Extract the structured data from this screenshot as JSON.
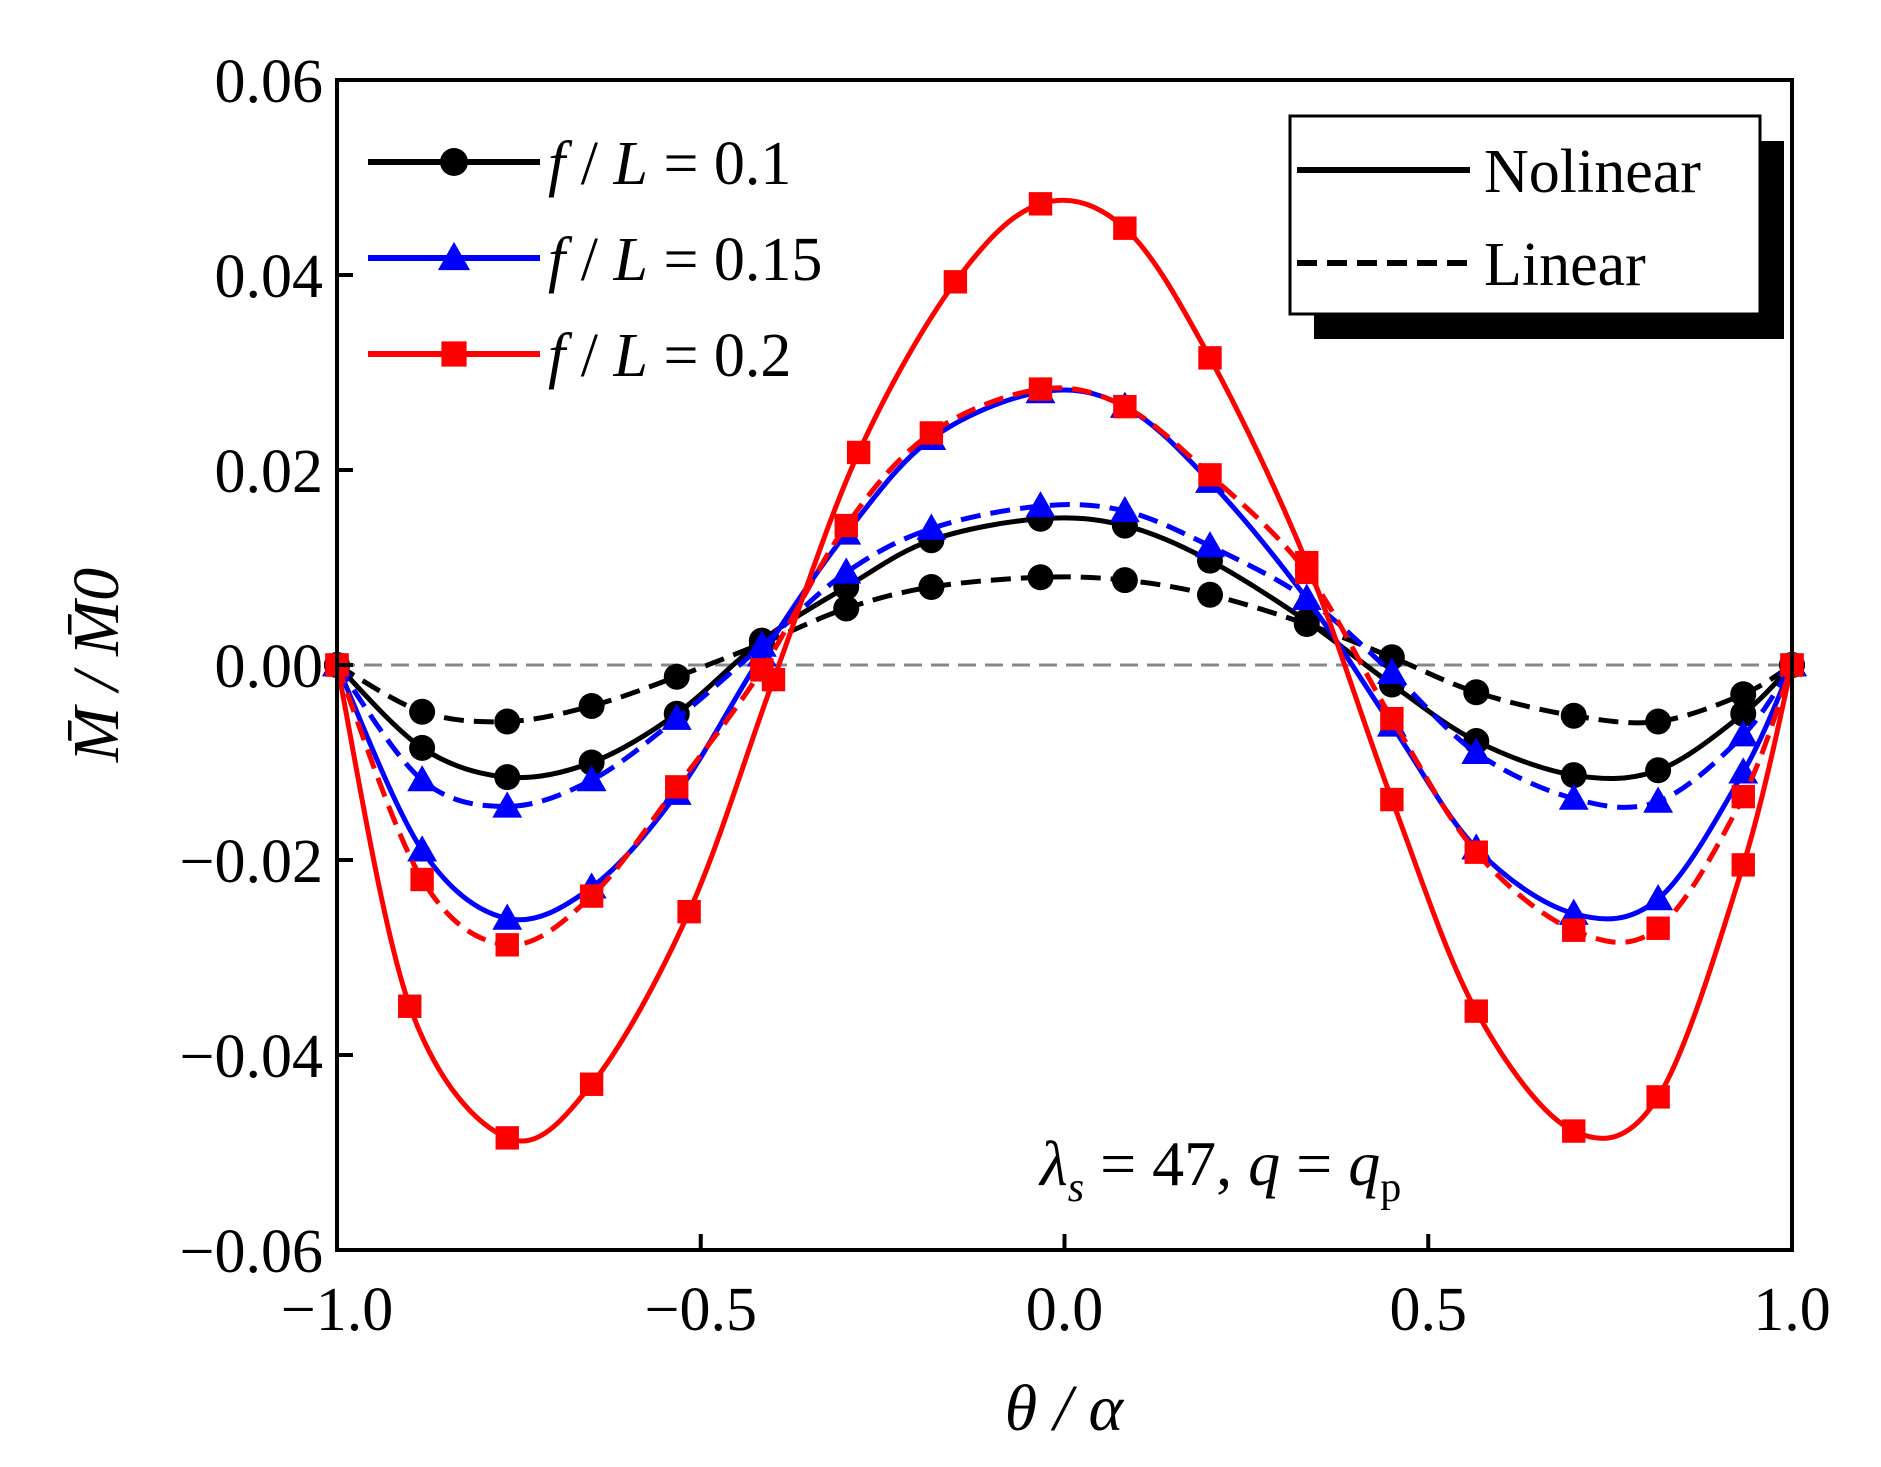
{
  "chart_data": {
    "type": "line",
    "xlabel": "θ / α",
    "ylabel": "M̄ / M̄0",
    "xlim": [
      -1.0,
      1.0
    ],
    "ylim": [
      -0.06,
      0.06
    ],
    "xticks": [
      -1.0,
      -0.5,
      0.0,
      0.5,
      1.0
    ],
    "xtick_labels": [
      "−1.0",
      "−0.5",
      "0.0",
      "0.5",
      "1.0"
    ],
    "yticks": [
      -0.06,
      -0.04,
      -0.02,
      0.0,
      0.02,
      0.04,
      0.06
    ],
    "ytick_labels": [
      "−0.06",
      "−0.04",
      "−0.02",
      "0.00",
      "0.02",
      "0.04",
      "0.06"
    ],
    "zero_line": true,
    "grid": false,
    "legend_series_placement": "top-left",
    "legend_style_placement": "top-right",
    "style_legend": [
      {
        "label": "Nolinear",
        "dash": "solid"
      },
      {
        "label": "Linear",
        "dash": "dashed"
      }
    ],
    "annotation": {
      "lambda": "λ",
      "lambda_sub": "s",
      "middle": " = 47, ",
      "q": "q",
      "eq": " = ",
      "q2": "q",
      "q2_sub": "p"
    },
    "series": [
      {
        "name": "f / L = 0.1",
        "name_parts": {
          "f": "f",
          "sep": " / ",
          "L": "L",
          "val": " = 0.1"
        },
        "color": "#000000",
        "marker": "circle",
        "style": "solid",
        "x": [
          -1.0,
          -0.883,
          -0.766,
          -0.65,
          -0.533,
          -0.416,
          -0.3,
          -0.183,
          -0.033,
          0.083,
          0.2,
          0.333,
          0.45,
          0.566,
          0.7,
          0.816,
          0.933,
          1.0
        ],
        "y": [
          0.0,
          -0.0085,
          -0.0115,
          -0.01,
          -0.005,
          0.0025,
          0.008,
          0.0128,
          0.015,
          0.0143,
          0.0107,
          0.0045,
          -0.002,
          -0.0078,
          -0.0113,
          -0.0108,
          -0.005,
          0.0
        ]
      },
      {
        "name": "f / L = 0.1",
        "color": "#000000",
        "marker": "circle",
        "style": "dashed",
        "x": [
          -1.0,
          -0.883,
          -0.766,
          -0.65,
          -0.533,
          -0.416,
          -0.3,
          -0.183,
          -0.033,
          0.083,
          0.2,
          0.333,
          0.45,
          0.566,
          0.7,
          0.816,
          0.933,
          1.0
        ],
        "y": [
          0.0,
          -0.0048,
          -0.0058,
          -0.0042,
          -0.0012,
          0.0022,
          0.0058,
          0.008,
          0.009,
          0.0087,
          0.0072,
          0.0042,
          0.0008,
          -0.0028,
          -0.0052,
          -0.0058,
          -0.003,
          0.0
        ]
      },
      {
        "name": "f / L = 0.15",
        "name_parts": {
          "f": "f",
          "sep": " / ",
          "L": "L",
          "val": " = 0.15"
        },
        "color": "#0000ff",
        "marker": "triangle",
        "style": "solid",
        "x": [
          -1.0,
          -0.883,
          -0.766,
          -0.65,
          -0.533,
          -0.416,
          -0.3,
          -0.183,
          -0.033,
          0.083,
          0.2,
          0.333,
          0.45,
          0.566,
          0.7,
          0.816,
          0.933,
          1.0
        ],
        "y": [
          0.0,
          -0.019,
          -0.026,
          -0.0228,
          -0.0132,
          0.001,
          0.0135,
          0.0232,
          0.028,
          0.0265,
          0.0188,
          0.0068,
          -0.0062,
          -0.0188,
          -0.0255,
          -0.024,
          -0.011,
          0.0
        ]
      },
      {
        "name": "f / L = 0.15",
        "color": "#0000ff",
        "marker": "triangle",
        "style": "dashed",
        "x": [
          -1.0,
          -0.883,
          -0.766,
          -0.65,
          -0.533,
          -0.416,
          -0.3,
          -0.183,
          -0.033,
          0.083,
          0.2,
          0.333,
          0.45,
          0.566,
          0.7,
          0.816,
          0.933,
          1.0
        ],
        "y": [
          0.0,
          -0.0118,
          -0.0145,
          -0.0118,
          -0.0055,
          0.002,
          0.0095,
          0.014,
          0.0163,
          0.0158,
          0.0122,
          0.0068,
          -0.0008,
          -0.009,
          -0.0137,
          -0.014,
          -0.0072,
          0.0
        ]
      },
      {
        "name": "f / L = 0.2",
        "name_parts": {
          "f": "f",
          "sep": " / ",
          "L": "L",
          "val": " = 0.2"
        },
        "color": "#ff0000",
        "marker": "square",
        "style": "solid",
        "x": [
          -1.0,
          -0.9,
          -0.766,
          -0.65,
          -0.516,
          -0.4,
          -0.283,
          -0.15,
          -0.033,
          0.083,
          0.2,
          0.333,
          0.45,
          0.566,
          0.7,
          0.816,
          0.933,
          1.0
        ],
        "y": [
          0.0,
          -0.035,
          -0.0485,
          -0.043,
          -0.0253,
          -0.0015,
          0.0218,
          0.0393,
          0.0473,
          0.0448,
          0.0315,
          0.0105,
          -0.0138,
          -0.0355,
          -0.0478,
          -0.0443,
          -0.0205,
          0.0
        ]
      },
      {
        "name": "f / L = 0.2",
        "color": "#ff0000",
        "marker": "square",
        "style": "dashed",
        "x": [
          -1.0,
          -0.883,
          -0.766,
          -0.65,
          -0.533,
          -0.416,
          -0.3,
          -0.183,
          -0.033,
          0.083,
          0.2,
          0.333,
          0.45,
          0.566,
          0.7,
          0.816,
          0.933,
          1.0
        ],
        "y": [
          0.0,
          -0.022,
          -0.0287,
          -0.0237,
          -0.0125,
          -0.0005,
          0.0143,
          0.0238,
          0.0283,
          0.0265,
          0.0195,
          0.0095,
          -0.0055,
          -0.0192,
          -0.0272,
          -0.027,
          -0.0135,
          0.0
        ]
      }
    ]
  }
}
